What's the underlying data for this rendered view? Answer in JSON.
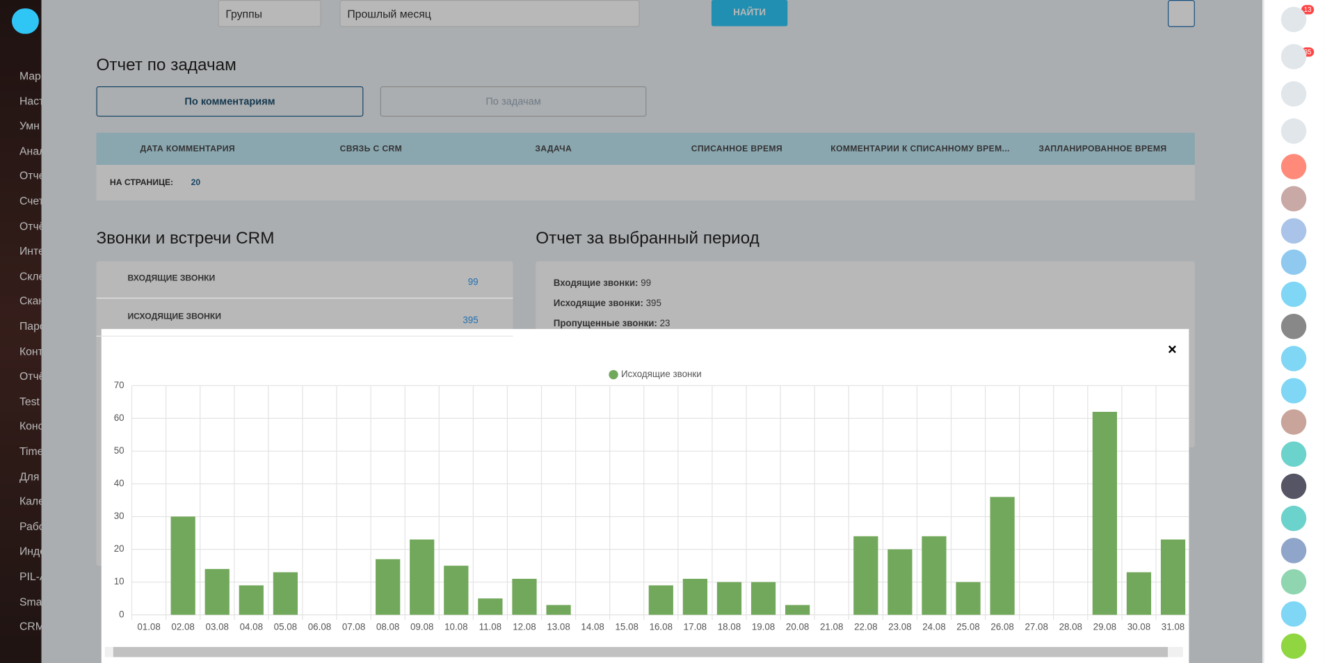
{
  "page": {
    "sidebar": [
      "Мар",
      "Наст",
      "Умн",
      "Анал",
      "Отче",
      "Счет",
      "Отчё",
      "Инте",
      "Скле",
      "Скан",
      "Паро",
      "Конт",
      "Отчё",
      "Test",
      "Конс",
      "Time",
      "Для",
      "Кале",
      "Рабо",
      "Инде",
      "PIL-A",
      "Smar",
      "CRM"
    ],
    "filters": {
      "group": "Группы",
      "period": "Прошлый месяц",
      "search": "НАЙТИ"
    },
    "task_report": {
      "title": "Отчет по задачам",
      "tab_comments": "По комментариям",
      "tab_tasks": "По задачам",
      "columns": [
        "ДАТА КОММЕНТАРИЯ",
        "СВЯЗЬ С CRM",
        "ЗАДАЧА",
        "СПИСАННОЕ ВРЕМЯ",
        "КОММЕНТАРИИ К СПИСАННОМУ ВРЕМ...",
        "ЗАПЛАНИРОВАННОЕ ВРЕМЯ"
      ],
      "per_page_label": "НА СТРАНИЦЕ:",
      "per_page": "20"
    },
    "calls": {
      "title": "Звонки и встречи CRM",
      "rows": [
        {
          "label": "ВХОДЯЩИЕ ЗВОНКИ",
          "value": "99"
        },
        {
          "label": "ИСХОДЯЩИЕ ЗВОНКИ",
          "value": "395"
        }
      ]
    },
    "period_report": {
      "title": "Отчет за выбранный период",
      "rows": [
        {
          "label": "Входящие звонки:",
          "value": "99"
        },
        {
          "label": "Исходящие звонки:",
          "value": "395"
        },
        {
          "label": "Пропущенные звонки:",
          "value": "23"
        }
      ]
    },
    "badges": {
      "help": "13",
      "notifications": "35"
    }
  },
  "chart_data": {
    "type": "bar",
    "legend": "top",
    "grid": true,
    "categories": [
      "01.08",
      "02.08",
      "03.08",
      "04.08",
      "05.08",
      "06.08",
      "07.08",
      "08.08",
      "09.08",
      "10.08",
      "11.08",
      "12.08",
      "13.08",
      "14.08",
      "15.08",
      "16.08",
      "17.08",
      "18.08",
      "19.08",
      "20.08",
      "21.08",
      "22.08",
      "23.08",
      "24.08",
      "25.08",
      "26.08",
      "27.08",
      "28.08",
      "29.08",
      "30.08",
      "31.08"
    ],
    "series": [
      {
        "name": "Исходящие звонки",
        "color": "#72a85b",
        "values": [
          0,
          30,
          14,
          9,
          13,
          0,
          0,
          17,
          23,
          15,
          5,
          11,
          3,
          0,
          0,
          9,
          11,
          10,
          10,
          3,
          0,
          24,
          20,
          24,
          10,
          36,
          0,
          0,
          62,
          13,
          23
        ]
      }
    ],
    "ylim": [
      0,
      70
    ],
    "yticks": [
      0,
      10,
      20,
      30,
      40,
      50,
      60,
      70
    ]
  }
}
